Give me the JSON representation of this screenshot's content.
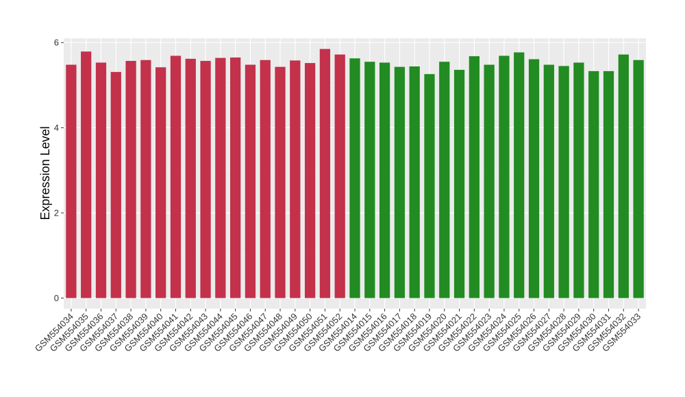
{
  "chart_data": {
    "type": "bar",
    "xlabel": "",
    "ylabel": "Expression Level",
    "ylim": [
      -0.25,
      6.1
    ],
    "yticks": [
      0,
      2,
      4,
      6
    ],
    "grid": true,
    "background": "#EBEBEB",
    "categories": [
      "GSM554034",
      "GSM554035",
      "GSM554036",
      "GSM554037",
      "GSM554038",
      "GSM554039",
      "GSM554040",
      "GSM554041",
      "GSM554042",
      "GSM554043",
      "GSM554044",
      "GSM554045",
      "GSM554046",
      "GSM554047",
      "GSM554048",
      "GSM554049",
      "GSM554050",
      "GSM554051",
      "GSM554052",
      "GSM554014",
      "GSM554015",
      "GSM554016",
      "GSM554017",
      "GSM554018",
      "GSM554019",
      "GSM554020",
      "GSM554021",
      "GSM554022",
      "GSM554023",
      "GSM554024",
      "GSM554025",
      "GSM554026",
      "GSM554027",
      "GSM554028",
      "GSM554029",
      "GSM554030",
      "GSM554031",
      "GSM554032",
      "GSM554033"
    ],
    "values": [
      5.48,
      5.79,
      5.53,
      5.31,
      5.57,
      5.59,
      5.42,
      5.69,
      5.62,
      5.57,
      5.64,
      5.65,
      5.48,
      5.59,
      5.43,
      5.58,
      5.52,
      5.85,
      5.72,
      5.63,
      5.55,
      5.53,
      5.43,
      5.44,
      5.26,
      5.55,
      5.36,
      5.68,
      5.48,
      5.69,
      5.77,
      5.61,
      5.48,
      5.45,
      5.53,
      5.33,
      5.33,
      5.72,
      5.59
    ],
    "group_sizes": [
      19,
      20
    ],
    "group_colors": [
      "#C3314A",
      "#228B22"
    ]
  }
}
